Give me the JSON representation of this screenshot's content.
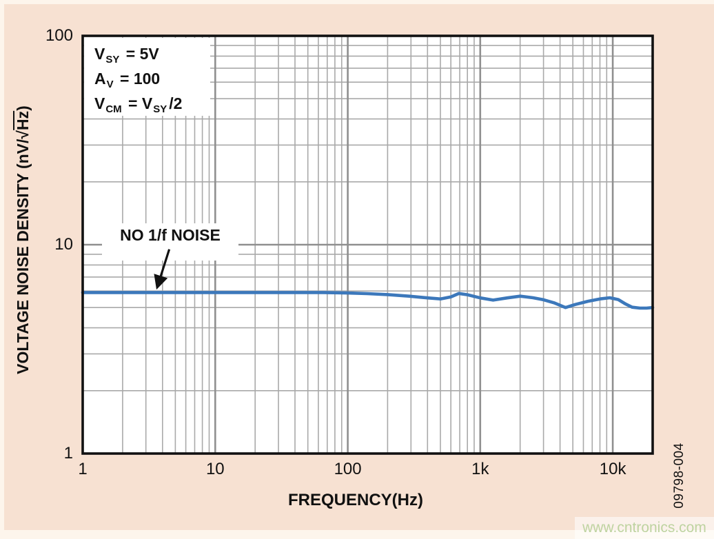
{
  "figure": {
    "id": "09798-004",
    "watermark": "www.cntronics.com"
  },
  "colors": {
    "page_bg": "#fdf5ec",
    "figure_bg": "#f7e1d2",
    "plot_bg": "#ffffff",
    "grid_minor": "#a9a9a9",
    "grid_major": "#8f8f8f",
    "frame": "#111111",
    "curve": "#3c78bb",
    "text": "#111111",
    "watermark_text": "#bed3a0"
  },
  "chart_data": {
    "type": "line",
    "title": "",
    "x_scale": "log",
    "y_scale": "log",
    "xlim": [
      1,
      20000
    ],
    "ylim": [
      1,
      100
    ],
    "grid": true,
    "minor_divisions": [
      2,
      3,
      4,
      5,
      6,
      7,
      8,
      9
    ],
    "xlabel": "FREQUENCY(Hz)",
    "ylabel_parts": {
      "prefix": "VOLTAGE NOISE DENSITY (nV/",
      "radical": "√",
      "under_radical": "Hz",
      "suffix": ")"
    },
    "x_ticks": [
      {
        "value": 1,
        "label": "1"
      },
      {
        "value": 10,
        "label": "10"
      },
      {
        "value": 100,
        "label": "100"
      },
      {
        "value": 1000,
        "label": "1k"
      },
      {
        "value": 10000,
        "label": "10k"
      }
    ],
    "y_ticks": [
      {
        "value": 1,
        "label": "1"
      },
      {
        "value": 10,
        "label": "10"
      },
      {
        "value": 100,
        "label": "100"
      }
    ],
    "series": [
      {
        "name": "voltage noise density",
        "color": "#3c78bb",
        "points": [
          [
            1,
            5.9
          ],
          [
            1.6,
            5.9
          ],
          [
            2.5,
            5.9
          ],
          [
            4,
            5.9
          ],
          [
            6.5,
            5.9
          ],
          [
            10,
            5.9
          ],
          [
            16,
            5.9
          ],
          [
            25,
            5.9
          ],
          [
            40,
            5.9
          ],
          [
            65,
            5.9
          ],
          [
            100,
            5.87
          ],
          [
            140,
            5.83
          ],
          [
            200,
            5.77
          ],
          [
            290,
            5.67
          ],
          [
            400,
            5.56
          ],
          [
            500,
            5.5
          ],
          [
            600,
            5.62
          ],
          [
            690,
            5.84
          ],
          [
            800,
            5.76
          ],
          [
            1000,
            5.56
          ],
          [
            1250,
            5.43
          ],
          [
            1600,
            5.56
          ],
          [
            2000,
            5.67
          ],
          [
            2500,
            5.57
          ],
          [
            3000,
            5.45
          ],
          [
            3600,
            5.27
          ],
          [
            4400,
            5.0
          ],
          [
            5200,
            5.17
          ],
          [
            6500,
            5.36
          ],
          [
            8000,
            5.5
          ],
          [
            9500,
            5.57
          ],
          [
            11000,
            5.46
          ],
          [
            12500,
            5.2
          ],
          [
            14000,
            5.02
          ],
          [
            16000,
            4.97
          ],
          [
            18000,
            4.97
          ],
          [
            20000,
            5.0
          ]
        ]
      }
    ],
    "annotations": {
      "conditions": [
        {
          "parts": [
            {
              "t": "V"
            },
            {
              "sub": "SY"
            },
            {
              "t": " = 5V"
            }
          ]
        },
        {
          "parts": [
            {
              "t": "A"
            },
            {
              "sub": "V"
            },
            {
              "t": " = 100"
            }
          ]
        },
        {
          "parts": [
            {
              "t": "V"
            },
            {
              "sub": "CM"
            },
            {
              "t": " = V"
            },
            {
              "sub": "SY"
            },
            {
              "t": "/2"
            }
          ]
        }
      ],
      "callout": {
        "text": "NO 1/f NOISE",
        "arrow_from": [
          4.5,
          9.5
        ],
        "arrow_to": [
          3.65,
          6.25
        ]
      }
    }
  }
}
